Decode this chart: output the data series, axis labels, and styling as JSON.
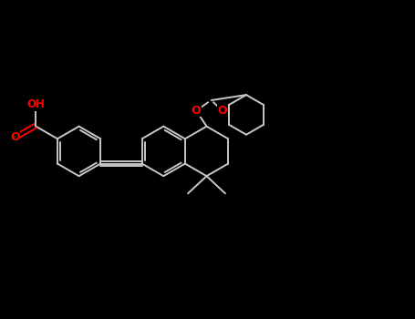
{
  "bg_color": "#000000",
  "bond_color": "#c8c8c8",
  "o_color": "#ff0000",
  "lw": 1.4,
  "figsize": [
    4.55,
    3.5
  ],
  "dpi": 100,
  "xlim": [
    0,
    10
  ],
  "ylim": [
    0,
    7.7
  ]
}
